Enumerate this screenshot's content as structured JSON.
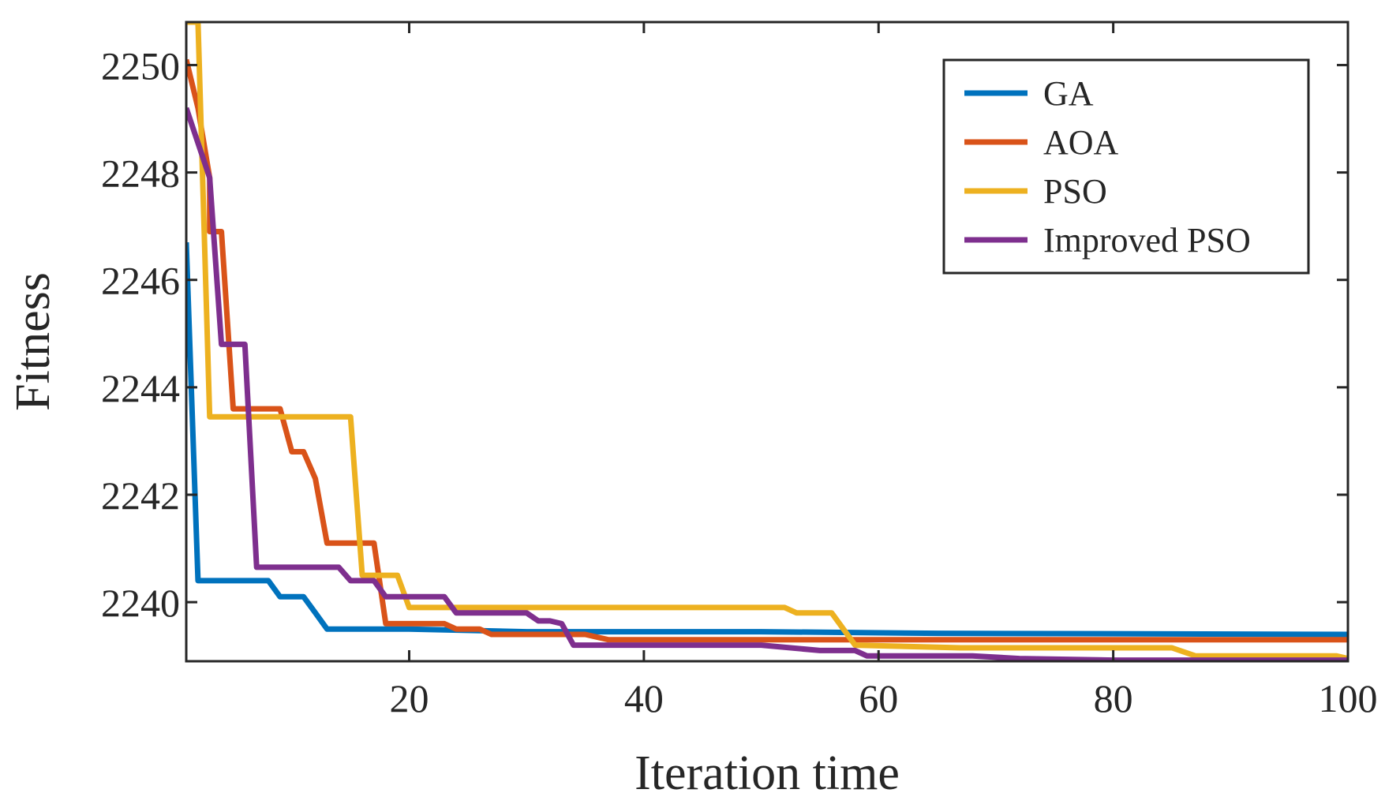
{
  "chart_data": {
    "type": "line",
    "title": "",
    "xlabel": "Iteration time",
    "ylabel": "Fitness",
    "xlim": [
      1,
      100
    ],
    "ylim": [
      2238.9,
      2250.8
    ],
    "xticks": [
      20,
      40,
      60,
      80,
      100
    ],
    "yticks": [
      2240,
      2242,
      2244,
      2246,
      2248,
      2250
    ],
    "grid": false,
    "legend_position": "top-right",
    "series": [
      {
        "name": "GA",
        "color": "#0072BD",
        "points": [
          [
            1,
            2246.7
          ],
          [
            2,
            2240.4
          ],
          [
            3,
            2240.4
          ],
          [
            7,
            2240.4
          ],
          [
            8,
            2240.4
          ],
          [
            9,
            2240.1
          ],
          [
            11,
            2240.1
          ],
          [
            12,
            2239.8
          ],
          [
            13,
            2239.5
          ],
          [
            20,
            2239.5
          ],
          [
            30,
            2239.45
          ],
          [
            50,
            2239.45
          ],
          [
            65,
            2239.42
          ],
          [
            100,
            2239.4
          ]
        ]
      },
      {
        "name": "AOA",
        "color": "#D95319",
        "points": [
          [
            1,
            2250.1
          ],
          [
            2,
            2249.2
          ],
          [
            3,
            2247.9
          ],
          [
            3,
            2246.9
          ],
          [
            4,
            2246.9
          ],
          [
            5,
            2243.6
          ],
          [
            9,
            2243.6
          ],
          [
            10,
            2242.8
          ],
          [
            11,
            2242.8
          ],
          [
            12,
            2242.3
          ],
          [
            13,
            2241.1
          ],
          [
            17,
            2241.1
          ],
          [
            18,
            2239.6
          ],
          [
            23,
            2239.6
          ],
          [
            24,
            2239.5
          ],
          [
            26,
            2239.5
          ],
          [
            27,
            2239.4
          ],
          [
            35,
            2239.4
          ],
          [
            37,
            2239.3
          ],
          [
            100,
            2239.3
          ]
        ]
      },
      {
        "name": "PSO",
        "color": "#EDB120",
        "points": [
          [
            1,
            2250.8
          ],
          [
            2,
            2250.8
          ],
          [
            3,
            2243.45
          ],
          [
            15,
            2243.45
          ],
          [
            16,
            2240.5
          ],
          [
            19,
            2240.5
          ],
          [
            20,
            2239.9
          ],
          [
            52,
            2239.9
          ],
          [
            53,
            2239.8
          ],
          [
            56,
            2239.8
          ],
          [
            58,
            2239.2
          ],
          [
            67,
            2239.15
          ],
          [
            85,
            2239.15
          ],
          [
            87,
            2239.0
          ],
          [
            99,
            2239.0
          ],
          [
            100,
            2238.95
          ]
        ]
      },
      {
        "name": "Improved PSO",
        "color": "#7E2F8E",
        "points": [
          [
            1,
            2249.2
          ],
          [
            3,
            2247.9
          ],
          [
            4,
            2244.8
          ],
          [
            6,
            2244.8
          ],
          [
            7,
            2240.65
          ],
          [
            14,
            2240.65
          ],
          [
            15,
            2240.4
          ],
          [
            17,
            2240.4
          ],
          [
            18,
            2240.1
          ],
          [
            23,
            2240.1
          ],
          [
            24,
            2239.8
          ],
          [
            30,
            2239.8
          ],
          [
            31,
            2239.65
          ],
          [
            32,
            2239.65
          ],
          [
            33,
            2239.6
          ],
          [
            34,
            2239.2
          ],
          [
            50,
            2239.2
          ],
          [
            55,
            2239.1
          ],
          [
            58,
            2239.1
          ],
          [
            59,
            2239.0
          ],
          [
            68,
            2239.0
          ],
          [
            72,
            2238.95
          ],
          [
            80,
            2238.92
          ],
          [
            100,
            2238.92
          ]
        ]
      }
    ]
  }
}
